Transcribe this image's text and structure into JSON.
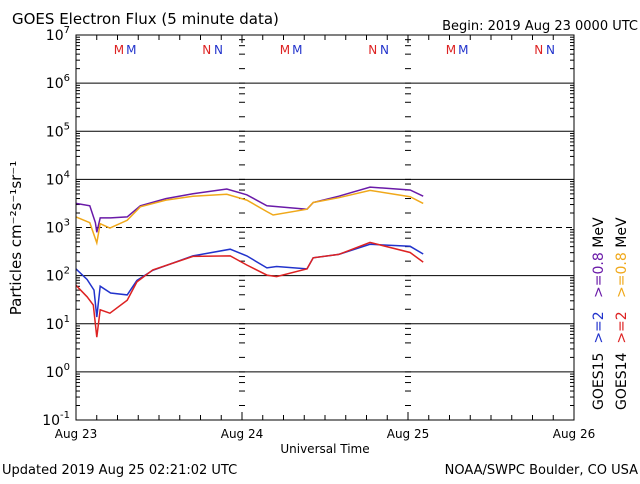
{
  "chart_data": {
    "type": "line",
    "title": "GOES Electron Flux (5 minute data)",
    "begin_label": "Begin: 2019 Aug 23 0000 UTC",
    "xlabel": "Universal Time",
    "ylabel": "Particles cm⁻²s⁻¹sr⁻¹",
    "yscale": "log",
    "ylim": [
      0.1,
      10000000
    ],
    "y_ticks": [
      {
        "base": "10",
        "exp": "7"
      },
      {
        "base": "10",
        "exp": "6"
      },
      {
        "base": "10",
        "exp": "5"
      },
      {
        "base": "10",
        "exp": "4"
      },
      {
        "base": "10",
        "exp": "3"
      },
      {
        "base": "10",
        "exp": "2"
      },
      {
        "base": "10",
        "exp": "1"
      },
      {
        "base": "10",
        "exp": "0"
      },
      {
        "base": "10",
        "exp": "-1"
      }
    ],
    "x_unit": "hours since 2019 Aug 23 0000 UTC",
    "xlim": [
      0,
      72
    ],
    "x_ticks": [
      "Aug 23",
      "Aug 24",
      "Aug 25",
      "Aug 26"
    ],
    "threshold_line_value": 1000,
    "markers": [
      {
        "letter": "M",
        "satellite": "GOES14",
        "color": "#dd2222",
        "hour": 6.2
      },
      {
        "letter": "M",
        "satellite": "GOES15",
        "color": "#2233cc",
        "hour": 8.0
      },
      {
        "letter": "N",
        "satellite": "GOES14",
        "color": "#dd2222",
        "hour": 18.9
      },
      {
        "letter": "N",
        "satellite": "GOES15",
        "color": "#2233cc",
        "hour": 20.6
      },
      {
        "letter": "M",
        "satellite": "GOES14",
        "color": "#dd2222",
        "hour": 30.2
      },
      {
        "letter": "M",
        "satellite": "GOES15",
        "color": "#2233cc",
        "hour": 32.0
      },
      {
        "letter": "N",
        "satellite": "GOES14",
        "color": "#dd2222",
        "hour": 42.9
      },
      {
        "letter": "N",
        "satellite": "GOES15",
        "color": "#2233cc",
        "hour": 44.6
      },
      {
        "letter": "M",
        "satellite": "GOES14",
        "color": "#dd2222",
        "hour": 54.2
      },
      {
        "letter": "M",
        "satellite": "GOES15",
        "color": "#2233cc",
        "hour": 56.0
      },
      {
        "letter": "N",
        "satellite": "GOES14",
        "color": "#dd2222",
        "hour": 66.9
      },
      {
        "letter": "N",
        "satellite": "GOES15",
        "color": "#2233cc",
        "hour": 68.6
      }
    ],
    "legend": {
      "placement": "right",
      "columns": [
        {
          "satellite": "GOES15",
          "energies": [
            {
              "label": ">=2",
              "color": "#2233cc"
            },
            {
              "label": ">=0.8",
              "color": "#6a1aa8"
            }
          ],
          "unit": "MeV"
        },
        {
          "satellite": "GOES14",
          "energies": [
            {
              "label": ">=2",
              "color": "#dd2222"
            },
            {
              "label": ">=0.8",
              "color": "#f0a81a"
            }
          ],
          "unit": "MeV"
        }
      ]
    },
    "series_value_format": "[hour, log10(flux)]",
    "series": [
      {
        "name": "GOES15 >=0.8 MeV",
        "color": "#6a1aa8",
        "points": [
          [
            0,
            3.5
          ],
          [
            2,
            3.45
          ],
          [
            2.8,
            3.1
          ],
          [
            3,
            2.9
          ],
          [
            3.5,
            3.2
          ],
          [
            5,
            3.2
          ],
          [
            7.4,
            3.22
          ],
          [
            9.3,
            3.45
          ],
          [
            13,
            3.6
          ],
          [
            16.9,
            3.7
          ],
          [
            21.8,
            3.8
          ],
          [
            24.7,
            3.68
          ],
          [
            27.6,
            3.45
          ],
          [
            33.4,
            3.38
          ],
          [
            34.3,
            3.52
          ],
          [
            38,
            3.65
          ],
          [
            42.5,
            3.84
          ],
          [
            48.3,
            3.78
          ],
          [
            50.2,
            3.65
          ]
        ]
      },
      {
        "name": "GOES14 >=0.8 MeV",
        "color": "#f0a81a",
        "points": [
          [
            0,
            3.22
          ],
          [
            2,
            3.1
          ],
          [
            3,
            2.68
          ],
          [
            3.5,
            3.08
          ],
          [
            4.9,
            2.99
          ],
          [
            7.4,
            3.15
          ],
          [
            9.3,
            3.43
          ],
          [
            13,
            3.57
          ],
          [
            16.9,
            3.65
          ],
          [
            21.8,
            3.69
          ],
          [
            24.7,
            3.57
          ],
          [
            27.6,
            3.33
          ],
          [
            28.5,
            3.26
          ],
          [
            33.4,
            3.38
          ],
          [
            34.3,
            3.52
          ],
          [
            38,
            3.62
          ],
          [
            42.5,
            3.77
          ],
          [
            48.3,
            3.64
          ],
          [
            50.2,
            3.5
          ]
        ]
      },
      {
        "name": "GOES15 >=2 MeV",
        "color": "#2233cc",
        "points": [
          [
            0,
            2.14
          ],
          [
            1.6,
            1.92
          ],
          [
            2.6,
            1.7
          ],
          [
            3,
            1.14
          ],
          [
            3.5,
            1.78
          ],
          [
            5,
            1.64
          ],
          [
            7.4,
            1.6
          ],
          [
            8.8,
            1.9
          ],
          [
            11.1,
            2.11
          ],
          [
            16.9,
            2.41
          ],
          [
            22.3,
            2.55
          ],
          [
            24.7,
            2.41
          ],
          [
            27.6,
            2.16
          ],
          [
            29,
            2.19
          ],
          [
            33.4,
            2.14
          ],
          [
            34.3,
            2.37
          ],
          [
            38,
            2.44
          ],
          [
            42.5,
            2.65
          ],
          [
            48.3,
            2.61
          ],
          [
            50.2,
            2.45
          ]
        ]
      },
      {
        "name": "GOES14 >=2 MeV",
        "color": "#dd2222",
        "points": [
          [
            0,
            1.8
          ],
          [
            1.6,
            1.56
          ],
          [
            2.5,
            1.39
          ],
          [
            3,
            0.72
          ],
          [
            3.5,
            1.29
          ],
          [
            4.9,
            1.22
          ],
          [
            7.4,
            1.49
          ],
          [
            8.8,
            1.87
          ],
          [
            11.1,
            2.12
          ],
          [
            16.9,
            2.4
          ],
          [
            22.3,
            2.41
          ],
          [
            24.7,
            2.22
          ],
          [
            27.6,
            2.01
          ],
          [
            29,
            1.98
          ],
          [
            33.4,
            2.14
          ],
          [
            34.3,
            2.37
          ],
          [
            38,
            2.44
          ],
          [
            42.5,
            2.69
          ],
          [
            48.3,
            2.48
          ],
          [
            50.2,
            2.28
          ]
        ]
      }
    ]
  },
  "footer": {
    "updated": "Updated 2019 Aug 25 02:21:02 UTC",
    "credit": "NOAA/SWPC Boulder, CO USA"
  }
}
